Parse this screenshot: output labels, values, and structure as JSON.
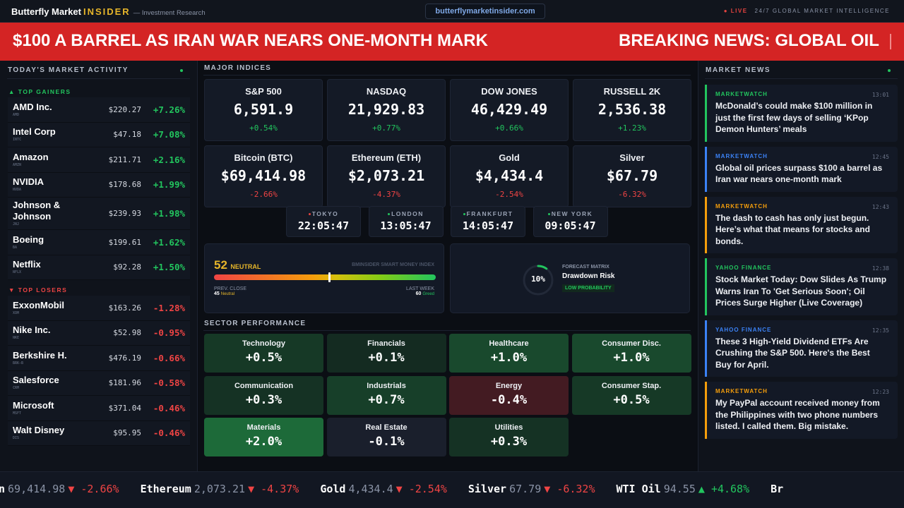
{
  "header": {
    "brand": "Butterfly Market",
    "brand_accent": "INSIDER",
    "tagline": "— Investment Research",
    "url": "butterflymarketinsider.com",
    "live": "LIVE",
    "live_tagline": "24/7 GLOBAL MARKET INTELLIGENCE"
  },
  "banner": {
    "headline": "$100 A BARREL AS IRAN WAR NEARS ONE-MONTH MARK",
    "next": "BREAKING NEWS: GLOBAL OIL"
  },
  "market_activity": {
    "title": "TODAY'S MARKET ACTIVITY",
    "gainers_label": "▲ TOP GAINERS",
    "losers_label": "▼ TOP LOSERS",
    "gainers": [
      {
        "name": "AMD Inc.",
        "ticker": "AMD",
        "price": "$220.27",
        "change": "+7.26%"
      },
      {
        "name": "Intel Corp",
        "ticker": "INTC",
        "price": "$47.18",
        "change": "+7.08%"
      },
      {
        "name": "Amazon",
        "ticker": "AMZN",
        "price": "$211.71",
        "change": "+2.16%"
      },
      {
        "name": "NVIDIA",
        "ticker": "NVDA",
        "price": "$178.68",
        "change": "+1.99%"
      },
      {
        "name": "Johnson & Johnson",
        "ticker": "JNJ",
        "price": "$239.93",
        "change": "+1.98%"
      },
      {
        "name": "Boeing",
        "ticker": "BA",
        "price": "$199.61",
        "change": "+1.62%"
      },
      {
        "name": "Netflix",
        "ticker": "NFLX",
        "price": "$92.28",
        "change": "+1.50%"
      }
    ],
    "losers": [
      {
        "name": "ExxonMobil",
        "ticker": "XOM",
        "price": "$163.26",
        "change": "-1.28%"
      },
      {
        "name": "Nike Inc.",
        "ticker": "NKE",
        "price": "$52.98",
        "change": "-0.95%"
      },
      {
        "name": "Berkshire H.",
        "ticker": "BRK-B",
        "price": "$476.19",
        "change": "-0.66%"
      },
      {
        "name": "Salesforce",
        "ticker": "CRM",
        "price": "$181.96",
        "change": "-0.58%"
      },
      {
        "name": "Microsoft",
        "ticker": "MSFT",
        "price": "$371.04",
        "change": "-0.46%"
      },
      {
        "name": "Walt Disney",
        "ticker": "DIS",
        "price": "$95.95",
        "change": "-0.46%"
      }
    ]
  },
  "indices": {
    "title": "MAJOR INDICES",
    "items": [
      {
        "name": "S&P 500",
        "value": "6,591.9",
        "change": "+0.54%",
        "dir": "up"
      },
      {
        "name": "NASDAQ",
        "value": "21,929.83",
        "change": "+0.77%",
        "dir": "up"
      },
      {
        "name": "DOW JONES",
        "value": "46,429.49",
        "change": "+0.66%",
        "dir": "up"
      },
      {
        "name": "RUSSELL 2K",
        "value": "2,536.38",
        "change": "+1.23%",
        "dir": "up"
      },
      {
        "name": "Bitcoin (BTC)",
        "value": "$69,414.98",
        "change": "-2.66%",
        "dir": "dn"
      },
      {
        "name": "Ethereum (ETH)",
        "value": "$2,073.21",
        "change": "-4.37%",
        "dir": "dn"
      },
      {
        "name": "Gold",
        "value": "$4,434.4",
        "change": "-2.54%",
        "dir": "dn"
      },
      {
        "name": "Silver",
        "value": "$67.79",
        "change": "-6.32%",
        "dir": "dn"
      }
    ]
  },
  "clocks": [
    {
      "city": "TOKYO",
      "time": "22:05:47",
      "status_color": "#e5433f"
    },
    {
      "city": "LONDON",
      "time": "13:05:47",
      "status_color": "#22c55e"
    },
    {
      "city": "FRANKFURT",
      "time": "14:05:47",
      "status_color": "#22c55e"
    },
    {
      "city": "NEW YORK",
      "time": "09:05:47",
      "status_color": "#22c55e"
    }
  ],
  "smart_money": {
    "value": "52",
    "label": "NEUTRAL",
    "title": "BMINSIDER SMART MONEY INDEX",
    "level_percent": 52,
    "prev_label": "PREV. CLOSE",
    "prev_value": "45",
    "prev_state": "Neutral",
    "week_label": "LAST WEEK",
    "week_value": "60",
    "week_state": "Greed"
  },
  "forecast": {
    "percent": "10%",
    "percent_value": 10,
    "kicker": "FORECAST MATRIX",
    "title": "Drawdown Risk",
    "badge": "LOW PROBABILITY"
  },
  "sectors": {
    "title": "SECTOR PERFORMANCE",
    "items": [
      {
        "name": "Technology",
        "value": "+0.5%"
      },
      {
        "name": "Financials",
        "value": "+0.1%"
      },
      {
        "name": "Healthcare",
        "value": "+1.0%"
      },
      {
        "name": "Consumer Disc.",
        "value": "+1.0%"
      },
      {
        "name": "Communication",
        "value": "+0.3%"
      },
      {
        "name": "Industrials",
        "value": "+0.7%"
      },
      {
        "name": "Energy",
        "value": "-0.4%"
      },
      {
        "name": "Consumer Stap.",
        "value": "+0.5%"
      },
      {
        "name": "Materials",
        "value": "+2.0%"
      },
      {
        "name": "Real Estate",
        "value": "-0.1%"
      },
      {
        "name": "Utilities",
        "value": "+0.3%"
      }
    ]
  },
  "news": {
    "title": "MARKET NEWS",
    "items": [
      {
        "source": "MARKETWATCH",
        "time": "13:01",
        "headline": "McDonald’s could make $100 million in just the first few days of selling ‘KPop Demon Hunters’ meals",
        "color": "#22c55e"
      },
      {
        "source": "MARKETWATCH",
        "time": "12:45",
        "headline": "Global oil prices surpass $100 a barrel as Iran war nears one-month mark",
        "color": "#3b82f6"
      },
      {
        "source": "MARKETWATCH",
        "time": "12:43",
        "headline": "The dash to cash has only just begun. Here’s what that means for stocks and bonds.",
        "color": "#f59e0b"
      },
      {
        "source": "YAHOO FINANCE",
        "time": "12:38",
        "headline": "Stock Market Today: Dow Slides As Trump Warns Iran To 'Get Serious Soon'; Oil Prices Surge Higher (Live Coverage)",
        "color": "#22c55e"
      },
      {
        "source": "YAHOO FINANCE",
        "time": "12:35",
        "headline": "These 3 High-Yield Dividend ETFs Are Crushing the S&P 500. Here's the Best Buy for April.",
        "color": "#3b82f6"
      },
      {
        "source": "MARKETWATCH",
        "time": "12:23",
        "headline": "My PayPal account received money from the Philippines with two phone numbers listed. I called them. Big mistake.",
        "color": "#f59e0b"
      }
    ]
  },
  "ticker": [
    {
      "name": "n",
      "value": "69,414.98",
      "arrow": "▼",
      "change": "-2.66%",
      "dir": "dn"
    },
    {
      "name": "Ethereum",
      "value": "2,073.21",
      "arrow": "▼",
      "change": "-4.37%",
      "dir": "dn"
    },
    {
      "name": "Gold",
      "value": "4,434.4",
      "arrow": "▼",
      "change": "-2.54%",
      "dir": "dn"
    },
    {
      "name": "Silver",
      "value": "67.79",
      "arrow": "▼",
      "change": "-6.32%",
      "dir": "dn"
    },
    {
      "name": "WTI Oil",
      "value": "94.55",
      "arrow": "▲",
      "change": "+4.68%",
      "dir": "up"
    },
    {
      "name": "Br",
      "value": "",
      "arrow": "",
      "change": "",
      "dir": "up"
    }
  ]
}
